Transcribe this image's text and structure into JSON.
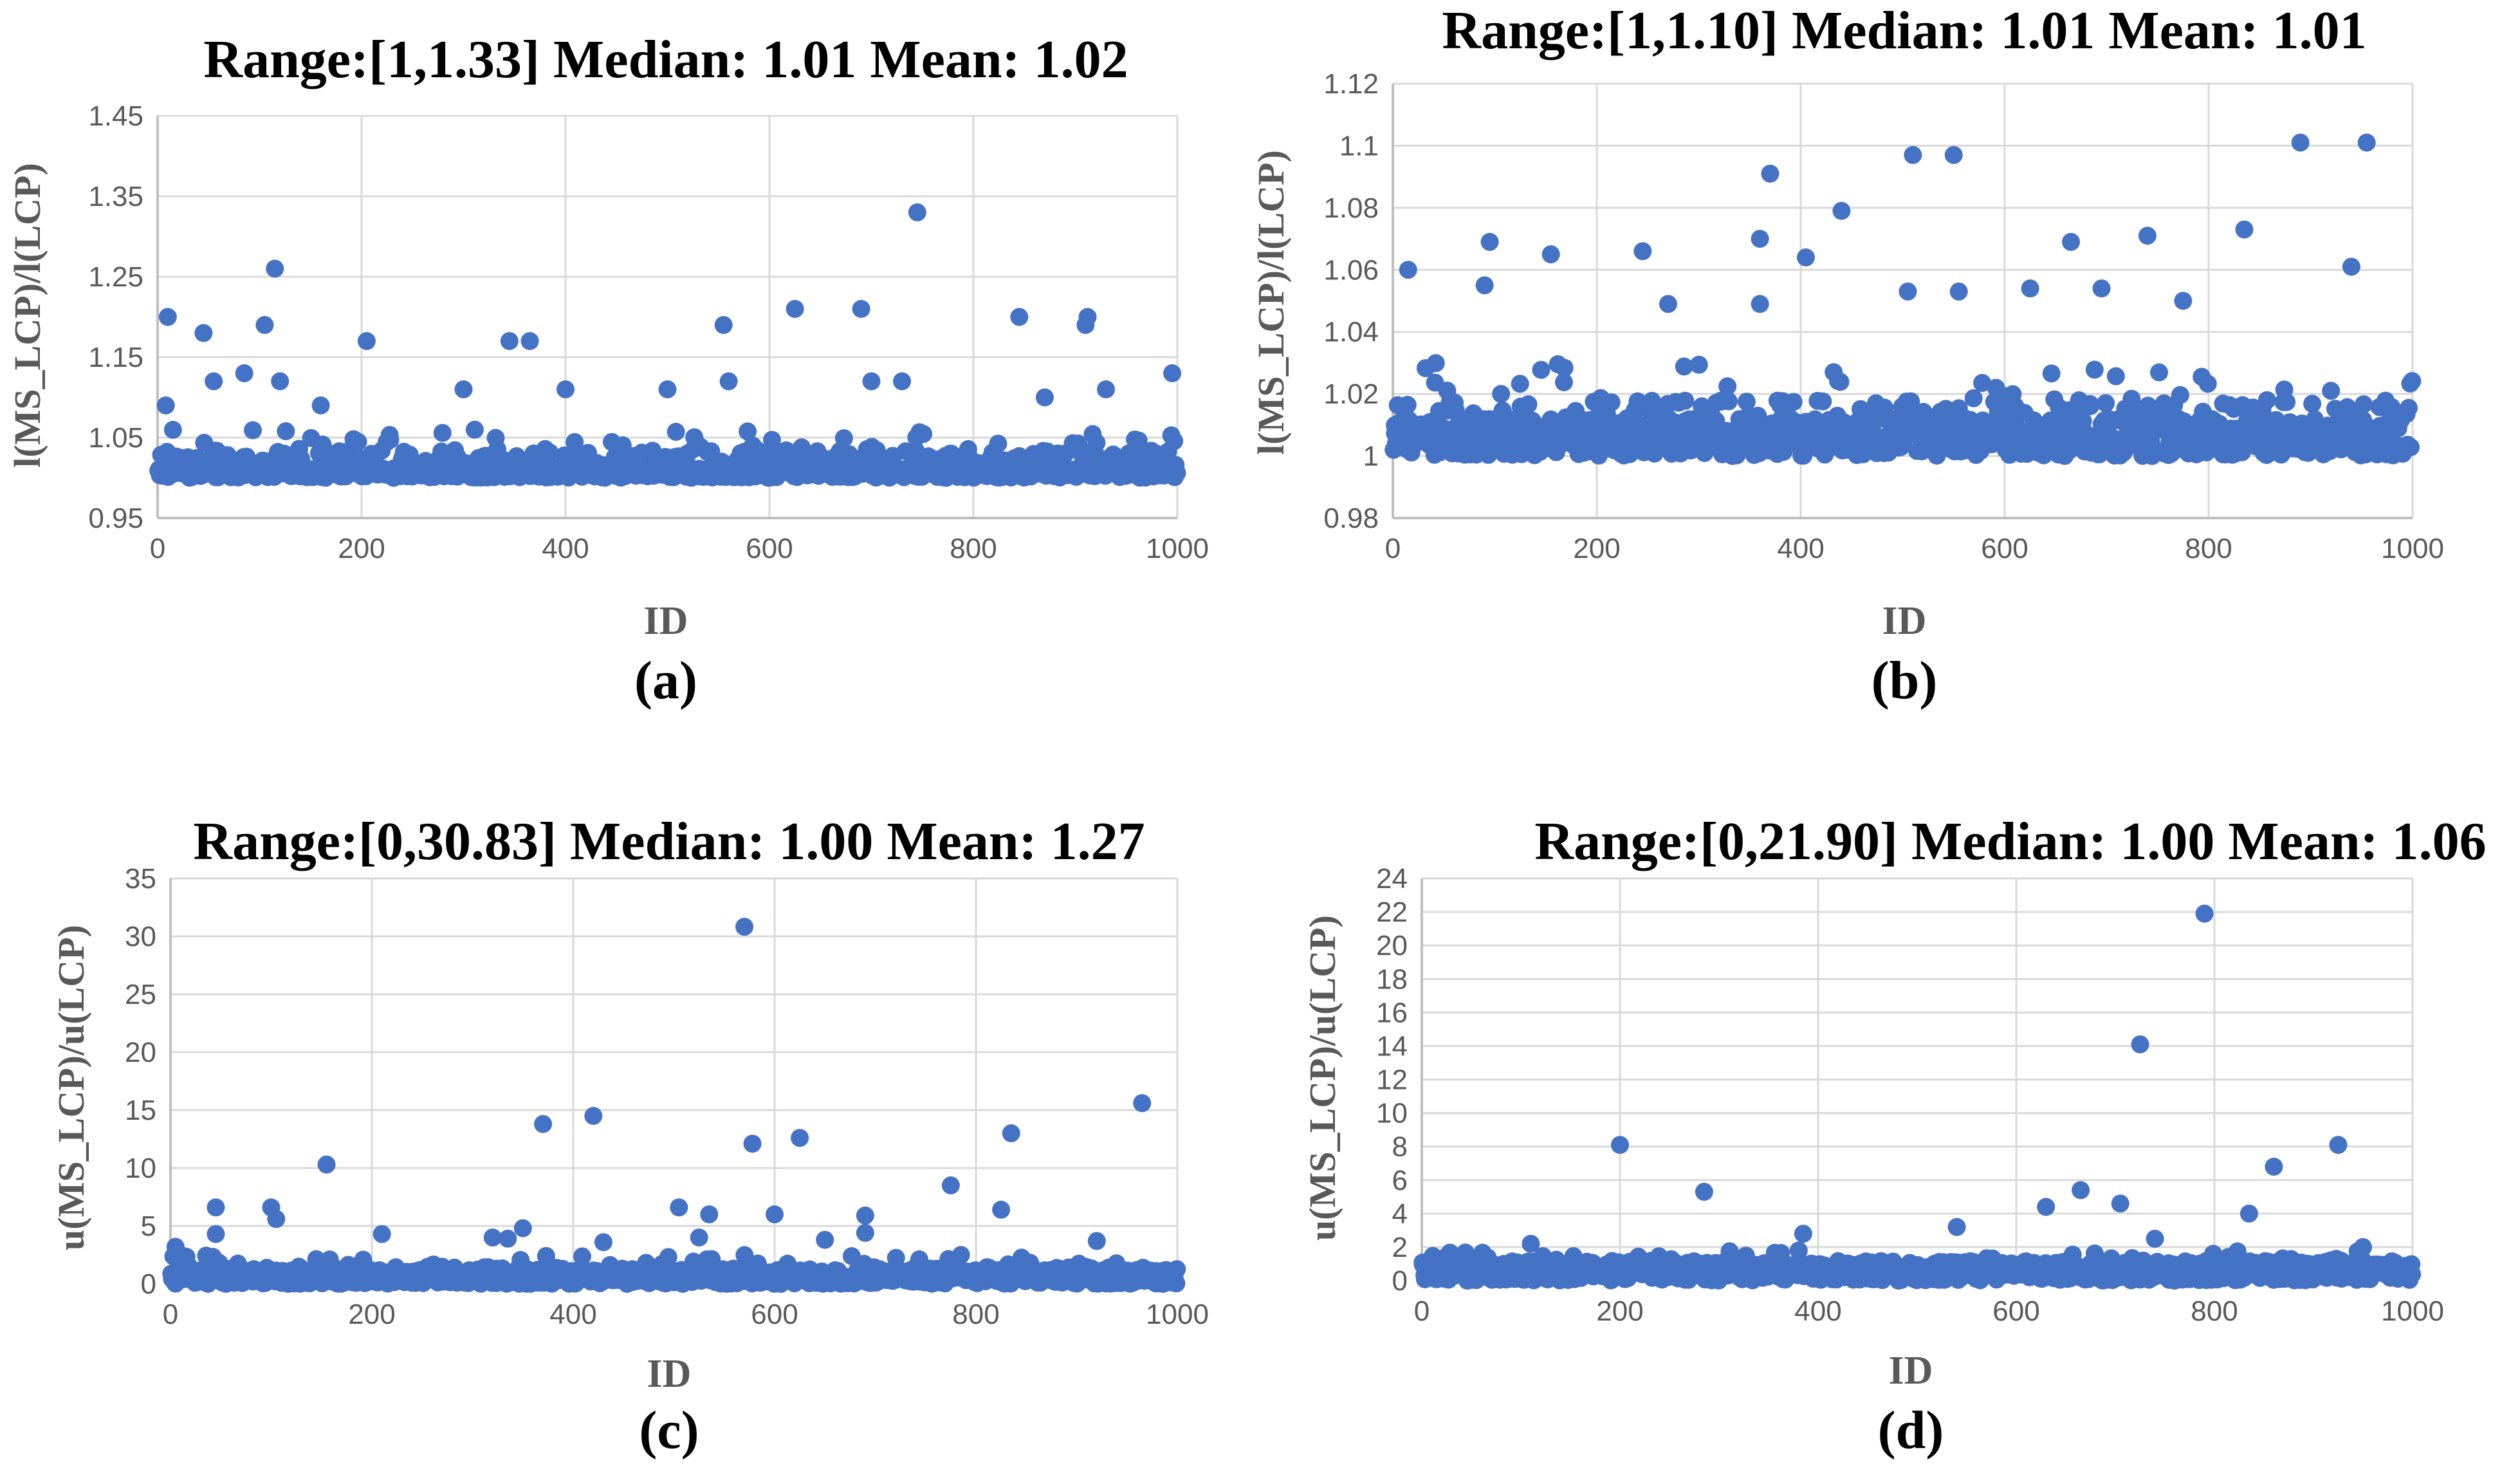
{
  "colors": {
    "marker": "#4472C4",
    "grid": "#d9d9d9",
    "axis": "#bfbfbf",
    "tick_text": "#595959"
  },
  "chart_data": [
    {
      "type": "scatter",
      "panel": "(a)",
      "title": "Range:[1,1.33]   Median: 1.01   Mean: 1.02",
      "xlabel": "ID",
      "ylabel": "l(MS_LCP)/l(LCP)",
      "xlim": [
        0,
        1000
      ],
      "ylim": [
        0.95,
        1.45
      ],
      "xticks": [
        0,
        200,
        400,
        600,
        800,
        1000
      ],
      "yticks": [
        0.95,
        1.05,
        1.15,
        1.25,
        1.35,
        1.45
      ],
      "ytick_labels": [
        "0.95",
        "1.05",
        "1.15",
        "1.25",
        "1.35",
        "1.45"
      ],
      "grid": true,
      "range": [
        1,
        1.33
      ],
      "median": 1.01,
      "mean": 1.02,
      "highlights": [
        {
          "x": 10,
          "y": 1.2
        },
        {
          "x": 45,
          "y": 1.18
        },
        {
          "x": 55,
          "y": 1.12
        },
        {
          "x": 85,
          "y": 1.13
        },
        {
          "x": 105,
          "y": 1.19
        },
        {
          "x": 115,
          "y": 1.26
        },
        {
          "x": 120,
          "y": 1.12
        },
        {
          "x": 205,
          "y": 1.17
        },
        {
          "x": 345,
          "y": 1.17
        },
        {
          "x": 365,
          "y": 1.17
        },
        {
          "x": 555,
          "y": 1.19
        },
        {
          "x": 625,
          "y": 1.21
        },
        {
          "x": 690,
          "y": 1.21
        },
        {
          "x": 745,
          "y": 1.33
        },
        {
          "x": 845,
          "y": 1.2
        },
        {
          "x": 910,
          "y": 1.19
        },
        {
          "x": 912,
          "y": 1.2
        },
        {
          "x": 995,
          "y": 1.13
        },
        {
          "x": 8,
          "y": 1.09
        },
        {
          "x": 160,
          "y": 1.09
        },
        {
          "x": 300,
          "y": 1.11
        },
        {
          "x": 400,
          "y": 1.11
        },
        {
          "x": 500,
          "y": 1.11
        },
        {
          "x": 560,
          "y": 1.12
        },
        {
          "x": 700,
          "y": 1.12
        },
        {
          "x": 730,
          "y": 1.12
        },
        {
          "x": 870,
          "y": 1.1
        },
        {
          "x": 930,
          "y": 1.11
        }
      ],
      "bulk": {
        "count": 1000,
        "min": 1.0,
        "median": 1.01,
        "upper": 1.06
      }
    },
    {
      "type": "scatter",
      "panel": "(b)",
      "title": "Range:[1,1.10]     Median: 1.01     Mean: 1.01",
      "xlabel": "ID",
      "ylabel": "l(MS_LCP)/l(LCP)",
      "xlim": [
        0,
        1000
      ],
      "ylim": [
        0.98,
        1.12
      ],
      "xticks": [
        0,
        200,
        400,
        600,
        800,
        1000
      ],
      "yticks": [
        0.98,
        1,
        1.02,
        1.04,
        1.06,
        1.08,
        1.1,
        1.12
      ],
      "ytick_labels": [
        "0.98",
        "1",
        "1.02",
        "1.04",
        "1.06",
        "1.08",
        "1.1",
        "1.12"
      ],
      "grid": true,
      "range": [
        1,
        1.1
      ],
      "median": 1.01,
      "mean": 1.01,
      "highlights": [
        {
          "x": 15,
          "y": 1.06
        },
        {
          "x": 95,
          "y": 1.069
        },
        {
          "x": 155,
          "y": 1.065
        },
        {
          "x": 245,
          "y": 1.066
        },
        {
          "x": 360,
          "y": 1.07
        },
        {
          "x": 370,
          "y": 1.091
        },
        {
          "x": 405,
          "y": 1.064
        },
        {
          "x": 440,
          "y": 1.079
        },
        {
          "x": 510,
          "y": 1.097
        },
        {
          "x": 550,
          "y": 1.097
        },
        {
          "x": 665,
          "y": 1.069
        },
        {
          "x": 740,
          "y": 1.071
        },
        {
          "x": 835,
          "y": 1.073
        },
        {
          "x": 890,
          "y": 1.101
        },
        {
          "x": 955,
          "y": 1.101
        },
        {
          "x": 940,
          "y": 1.061
        },
        {
          "x": 90,
          "y": 1.055
        },
        {
          "x": 505,
          "y": 1.053
        },
        {
          "x": 555,
          "y": 1.053
        },
        {
          "x": 625,
          "y": 1.054
        },
        {
          "x": 695,
          "y": 1.054
        },
        {
          "x": 775,
          "y": 1.05
        },
        {
          "x": 360,
          "y": 1.049
        },
        {
          "x": 270,
          "y": 1.049
        }
      ],
      "bulk": {
        "count": 1000,
        "min": 1.0,
        "median": 1.01,
        "upper": 1.03
      }
    },
    {
      "type": "scatter",
      "panel": "(c)",
      "title": "Range:[0,30.83]  Median: 1.00  Mean: 1.27",
      "xlabel": "ID",
      "ylabel": "u(MS_LCP)/u(LCP)",
      "xlim": [
        0,
        1000
      ],
      "ylim": [
        0,
        35
      ],
      "xticks": [
        0,
        200,
        400,
        600,
        800,
        1000
      ],
      "yticks": [
        0,
        5,
        10,
        15,
        20,
        25,
        30,
        35
      ],
      "ytick_labels": [
        "0",
        "5",
        "10",
        "15",
        "20",
        "25",
        "30",
        "35"
      ],
      "grid": true,
      "range": [
        0,
        30.83
      ],
      "median": 1.0,
      "mean": 1.27,
      "highlights": [
        {
          "x": 570,
          "y": 30.83
        },
        {
          "x": 965,
          "y": 15.6
        },
        {
          "x": 420,
          "y": 14.5
        },
        {
          "x": 370,
          "y": 13.8
        },
        {
          "x": 835,
          "y": 13.0
        },
        {
          "x": 625,
          "y": 12.6
        },
        {
          "x": 578,
          "y": 12.1
        },
        {
          "x": 155,
          "y": 10.3
        },
        {
          "x": 775,
          "y": 8.5
        },
        {
          "x": 45,
          "y": 6.6
        },
        {
          "x": 100,
          "y": 6.6
        },
        {
          "x": 505,
          "y": 6.6
        },
        {
          "x": 825,
          "y": 6.4
        },
        {
          "x": 535,
          "y": 6.0
        },
        {
          "x": 600,
          "y": 6.0
        },
        {
          "x": 690,
          "y": 5.9
        },
        {
          "x": 105,
          "y": 5.6
        },
        {
          "x": 350,
          "y": 4.8
        },
        {
          "x": 45,
          "y": 4.3
        },
        {
          "x": 210,
          "y": 4.3
        },
        {
          "x": 690,
          "y": 4.4
        },
        {
          "x": 525,
          "y": 4.0
        },
        {
          "x": 320,
          "y": 4.0
        },
        {
          "x": 335,
          "y": 3.9
        },
        {
          "x": 650,
          "y": 3.8
        },
        {
          "x": 430,
          "y": 3.6
        },
        {
          "x": 920,
          "y": 3.7
        },
        {
          "x": 5,
          "y": 3.2
        }
      ],
      "bulk": {
        "count": 1000,
        "min": 0.0,
        "median": 1.0,
        "upper": 2.5
      }
    },
    {
      "type": "scatter",
      "panel": "(d)",
      "title": "Range:[0,21.90]   Median: 1.00   Mean: 1.06",
      "xlabel": "ID",
      "ylabel": "u(MS_LCP)/u(LCP)",
      "xlim": [
        0,
        1000
      ],
      "ylim": [
        0,
        24
      ],
      "xticks": [
        0,
        200,
        400,
        600,
        800,
        1000
      ],
      "yticks": [
        0,
        2,
        4,
        6,
        8,
        10,
        12,
        14,
        16,
        18,
        20,
        22,
        24
      ],
      "ytick_labels": [
        "0",
        "2",
        "4",
        "6",
        "8",
        "10",
        "12",
        "14",
        "16",
        "18",
        "20",
        "22",
        "24"
      ],
      "grid": true,
      "range": [
        0,
        21.9
      ],
      "median": 1.0,
      "mean": 1.06,
      "highlights": [
        {
          "x": 790,
          "y": 21.9
        },
        {
          "x": 725,
          "y": 14.1
        },
        {
          "x": 200,
          "y": 8.1
        },
        {
          "x": 925,
          "y": 8.1
        },
        {
          "x": 860,
          "y": 6.8
        },
        {
          "x": 285,
          "y": 5.3
        },
        {
          "x": 665,
          "y": 5.4
        },
        {
          "x": 705,
          "y": 4.6
        },
        {
          "x": 630,
          "y": 4.4
        },
        {
          "x": 835,
          "y": 4.0
        },
        {
          "x": 540,
          "y": 3.2
        },
        {
          "x": 385,
          "y": 2.8
        },
        {
          "x": 740,
          "y": 2.5
        },
        {
          "x": 110,
          "y": 2.2
        },
        {
          "x": 950,
          "y": 2.0
        }
      ],
      "bulk": {
        "count": 1000,
        "min": 0.0,
        "median": 1.0,
        "upper": 1.8
      }
    }
  ]
}
